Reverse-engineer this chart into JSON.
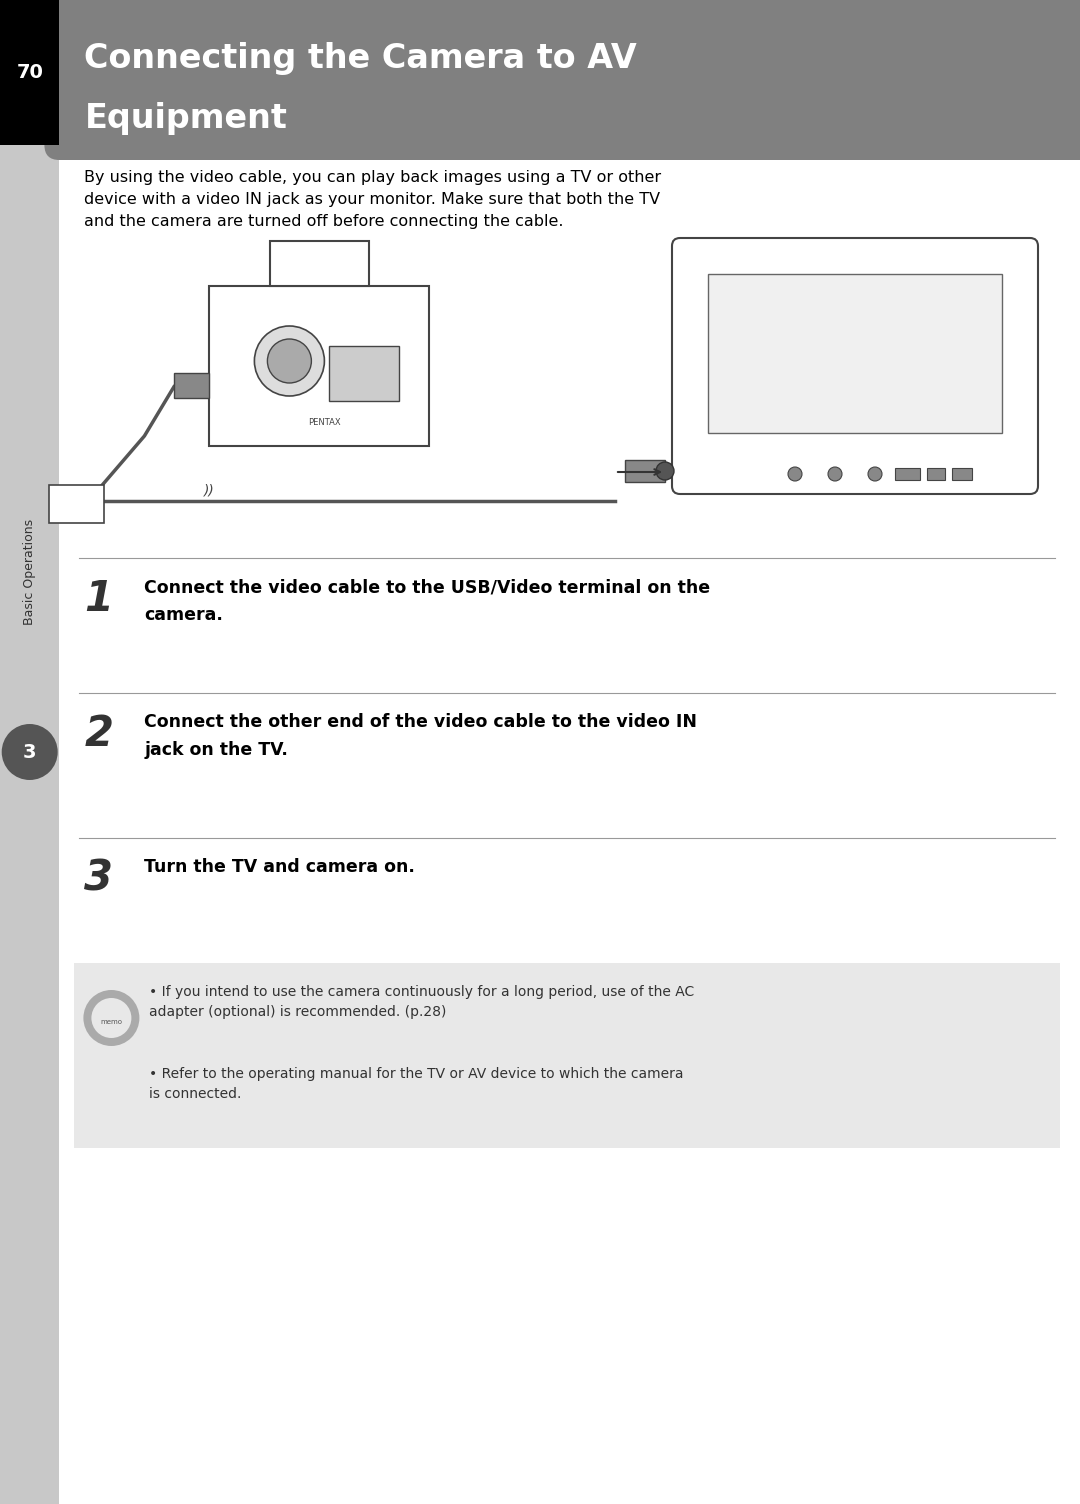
{
  "page_number": "70",
  "title_line1": "Connecting the Camera to AV",
  "title_line2": "Equipment",
  "title_bg_color": "#808080",
  "title_text_color": "#ffffff",
  "page_bg_color": "#ffffff",
  "left_bar_color": "#c8c8c8",
  "left_bar_width": 0.055,
  "sidebar_label": "Basic Operations",
  "sidebar_chapter": "3",
  "sidebar_chapter_bg": "#555555",
  "intro_text": "By using the video cable, you can play back images using a TV or other\ndevice with a video IN jack as your monitor. Make sure that both the TV\nand the camera are turned off before connecting the cable.",
  "step1_num": "1",
  "step1_text": "Connect the video cable to the USB/Video terminal on the\ncamera.",
  "step2_num": "2",
  "step2_text": "Connect the other end of the video cable to the video IN\njack on the TV.",
  "step3_num": "3",
  "step3_text": "Turn the TV and camera on.",
  "memo_bg_color": "#e8e8e8",
  "memo_bullet1": "If you intend to use the camera continuously for a long period, use of the AC\nadapter (optional) is recommended. (p.28)",
  "memo_bullet2": "Refer to the operating manual for the TV or AV device to which the camera\nis connected.",
  "divider_color": "#999999",
  "step_num_color": "#555555"
}
